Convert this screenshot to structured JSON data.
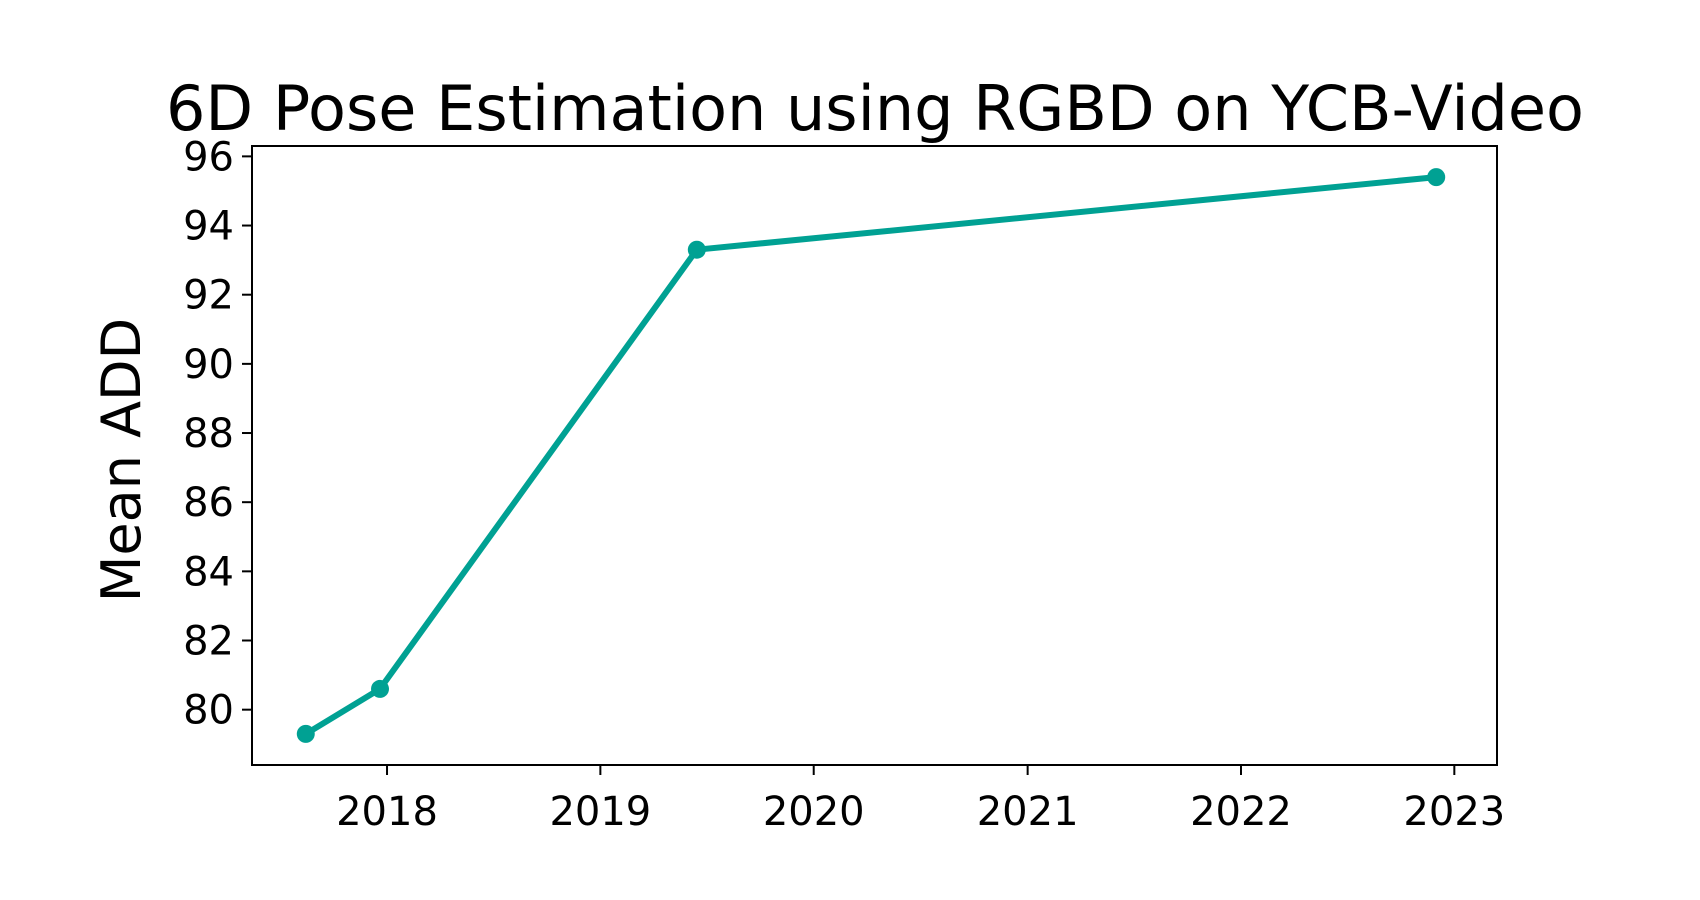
{
  "chart_data": {
    "type": "line",
    "title": "6D Pose Estimation using RGBD on YCB-Video",
    "xlabel": "",
    "ylabel": "Mean ADD",
    "x_ticks": [
      "2018",
      "2019",
      "2020",
      "2021",
      "2022",
      "2023"
    ],
    "y_ticks": [
      "80",
      "82",
      "84",
      "86",
      "88",
      "90",
      "92",
      "94",
      "96"
    ],
    "xlim": [
      "2017-05-15",
      "2023-03-15"
    ],
    "ylim": [
      78.4,
      96.3
    ],
    "grid": false,
    "series": [
      {
        "x": [
          "2017-08-15",
          "2017-12-20",
          "2019-06-15",
          "2022-12-01"
        ],
        "y": [
          79.3,
          80.6,
          93.3,
          95.4
        ]
      }
    ],
    "colors": {
      "series": "#00A193"
    }
  }
}
